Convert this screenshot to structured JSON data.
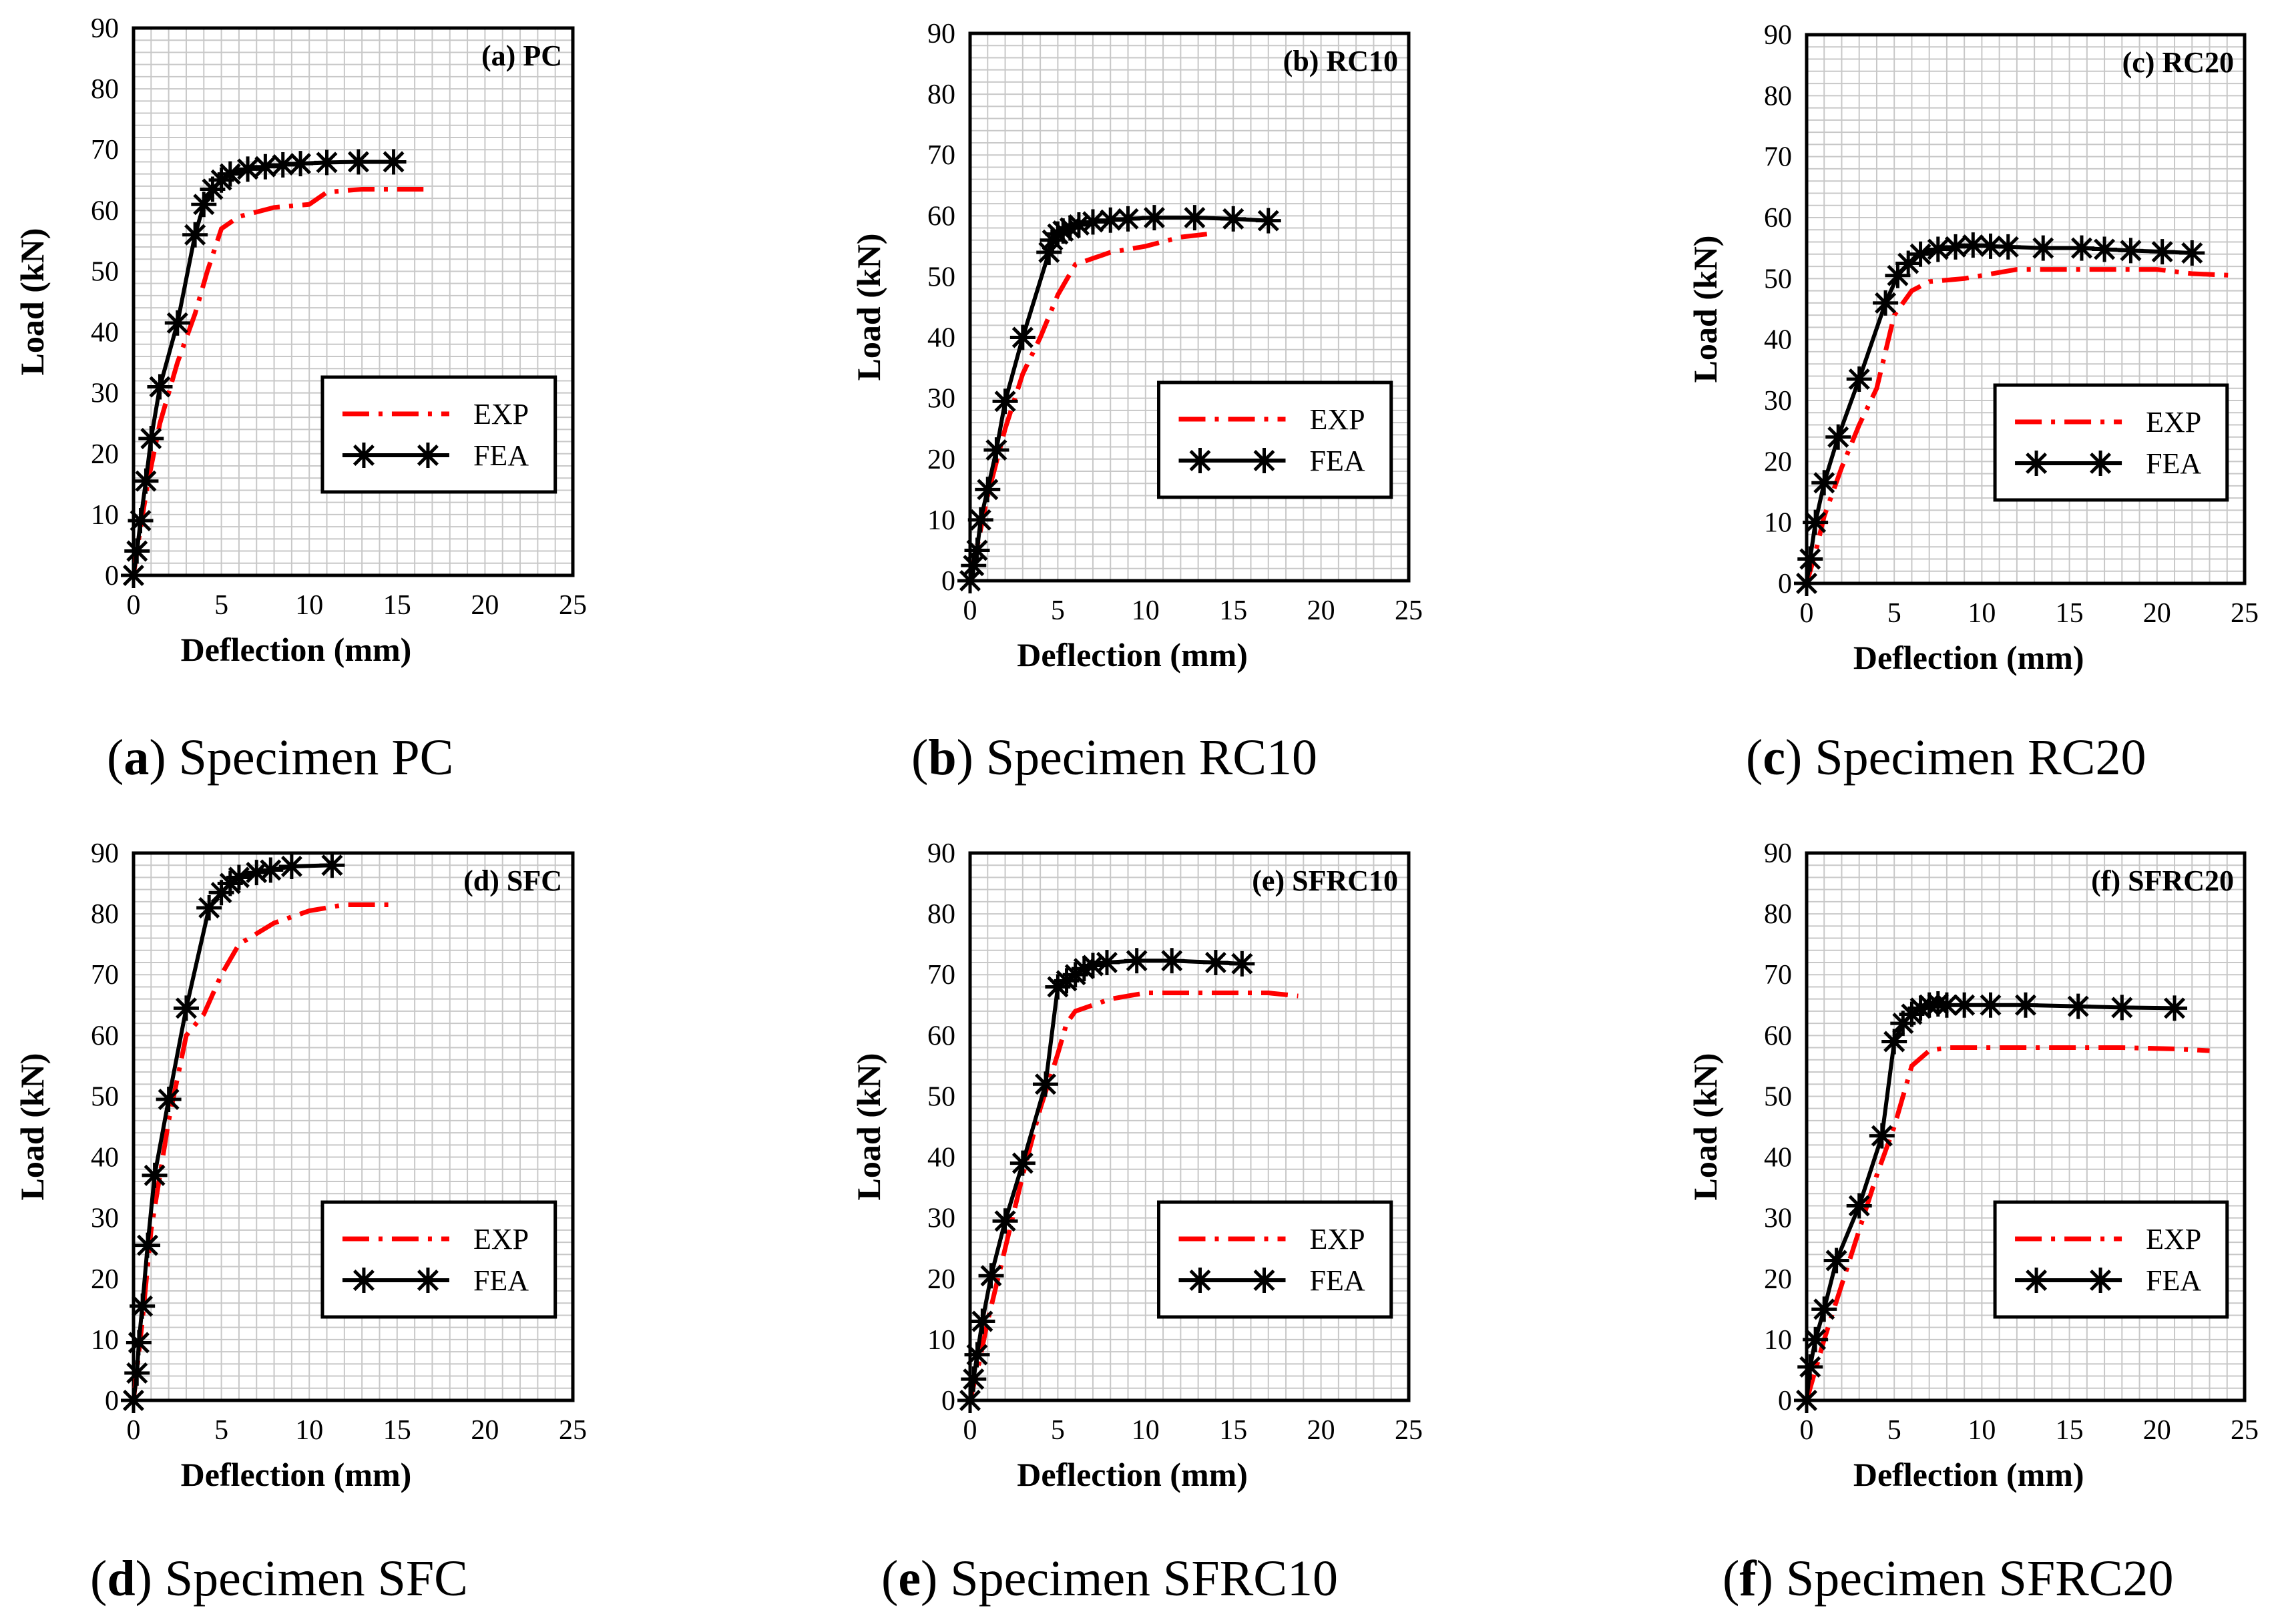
{
  "colors": {
    "exp": "#ff0000",
    "fea": "#000000",
    "grid": "#c8c8c8",
    "axis": "#000000",
    "background": "#ffffff"
  },
  "chart_data": [
    {
      "type": "line",
      "title": "(a) PC",
      "xlabel": "Deflection (mm)",
      "ylabel": "Load (kN)",
      "xlim": [
        0,
        25
      ],
      "ylim": [
        0,
        90
      ],
      "xticks": [
        "0",
        "5",
        "10",
        "15",
        "20",
        "25"
      ],
      "yticks": [
        "0",
        "10",
        "20",
        "30",
        "40",
        "50",
        "60",
        "70",
        "80",
        "90"
      ],
      "grid": true,
      "legend_position": "bottom-right",
      "caption_letter": "a",
      "caption_text": "Specimen PC",
      "series": [
        {
          "name": "EXP",
          "style": "dash-dot",
          "x": [
            0,
            0.3,
            0.8,
            1.5,
            2.5,
            3.5,
            4.2,
            5,
            6,
            8,
            10,
            11,
            13,
            15,
            16.5
          ],
          "y": [
            0,
            6,
            15,
            25,
            35,
            43,
            50,
            57,
            59,
            60.5,
            61,
            63,
            63.5,
            63.5,
            63.5
          ]
        },
        {
          "name": "FEA",
          "style": "solid-star",
          "x": [
            0,
            0.2,
            0.4,
            0.7,
            1,
            1.5,
            2.5,
            3.5,
            4,
            4.5,
            5,
            5.5,
            6.5,
            7.5,
            8.5,
            9.5,
            11,
            12.8,
            14.8
          ],
          "y": [
            0,
            4,
            9,
            15.5,
            22.5,
            31,
            41.5,
            56,
            61,
            63.5,
            65,
            66,
            66.8,
            67.2,
            67.5,
            67.7,
            67.9,
            68,
            68
          ]
        }
      ]
    },
    {
      "type": "line",
      "title": "(b) RC10",
      "xlabel": "Deflection (mm)",
      "ylabel": "Load (kN)",
      "xlim": [
        0,
        25
      ],
      "ylim": [
        0,
        90
      ],
      "xticks": [
        "0",
        "5",
        "10",
        "15",
        "20",
        "25"
      ],
      "yticks": [
        "0",
        "10",
        "20",
        "30",
        "40",
        "50",
        "60",
        "70",
        "80",
        "90"
      ],
      "grid": true,
      "legend_position": "bottom-right",
      "caption_letter": "b",
      "caption_text": "Specimen RC10",
      "series": [
        {
          "name": "EXP",
          "style": "dash-dot",
          "x": [
            0,
            0.5,
            1,
            2,
            3,
            4,
            5,
            6,
            7,
            8,
            10,
            12,
            13.5
          ],
          "y": [
            0,
            7,
            14,
            25,
            34,
            40,
            47,
            52,
            53,
            54,
            55,
            56.5,
            57
          ]
        },
        {
          "name": "FEA",
          "style": "solid-star",
          "x": [
            0,
            0.2,
            0.4,
            0.6,
            1,
            1.5,
            2,
            3,
            4.5,
            4.7,
            5,
            5.3,
            5.7,
            6.2,
            7,
            8,
            9,
            10.5,
            12.8,
            15,
            17
          ],
          "y": [
            0,
            2.5,
            5,
            10,
            15,
            21.5,
            29.5,
            40,
            54,
            56,
            57,
            57.5,
            58,
            58.5,
            59,
            59.3,
            59.5,
            59.7,
            59.7,
            59.5,
            59.2
          ]
        }
      ]
    },
    {
      "type": "line",
      "title": "(c) RC20",
      "xlabel": "Deflection (mm)",
      "ylabel": "Load (kN)",
      "xlim": [
        0,
        25
      ],
      "ylim": [
        0,
        90
      ],
      "xticks": [
        "0",
        "5",
        "10",
        "15",
        "20",
        "25"
      ],
      "yticks": [
        "0",
        "10",
        "20",
        "30",
        "40",
        "50",
        "60",
        "70",
        "80",
        "90"
      ],
      "grid": true,
      "legend_position": "bottom-right",
      "caption_letter": "c",
      "caption_text": "Specimen RC20",
      "series": [
        {
          "name": "EXP",
          "style": "dash-dot",
          "x": [
            0,
            0.5,
            1,
            2,
            3,
            4,
            5,
            6,
            7,
            9,
            10,
            12,
            15,
            18,
            20,
            22,
            24.5
          ],
          "y": [
            0,
            5,
            11,
            19,
            26,
            32,
            44,
            48,
            49.5,
            50,
            50.5,
            51.5,
            51.5,
            51.5,
            51.5,
            50.8,
            50.5
          ]
        },
        {
          "name": "FEA",
          "style": "solid-star",
          "x": [
            0,
            0.2,
            0.5,
            1,
            1.8,
            3,
            4.5,
            5.2,
            5.8,
            6.5,
            7.5,
            8.5,
            9.5,
            10.5,
            11.5,
            13.5,
            15.7,
            17,
            18.5,
            20.3,
            22
          ],
          "y": [
            0,
            4,
            10,
            16.5,
            24,
            33.5,
            46,
            50.5,
            52.5,
            54,
            54.8,
            55.2,
            55.5,
            55.3,
            55.2,
            55,
            55,
            54.8,
            54.6,
            54.4,
            54.2
          ]
        }
      ]
    },
    {
      "type": "line",
      "title": "(d) SFC",
      "xlabel": "Deflection (mm)",
      "ylabel": "Load (kN)",
      "xlim": [
        0,
        25
      ],
      "ylim": [
        0,
        90
      ],
      "xticks": [
        "0",
        "5",
        "10",
        "15",
        "20",
        "25"
      ],
      "yticks": [
        "0",
        "10",
        "20",
        "30",
        "40",
        "50",
        "60",
        "70",
        "80",
        "90"
      ],
      "grid": true,
      "legend_position": "bottom-right",
      "caption_letter": "d",
      "caption_text": "Specimen SFC",
      "series": [
        {
          "name": "EXP",
          "style": "dash-dot",
          "x": [
            0,
            0.5,
            1,
            2,
            3,
            4,
            5,
            6,
            8,
            10,
            12,
            14.8
          ],
          "y": [
            0,
            13,
            28,
            46,
            60,
            63.5,
            70,
            75,
            78.5,
            80.5,
            81.5,
            81.5
          ]
        },
        {
          "name": "FEA",
          "style": "solid-star",
          "x": [
            0,
            0.2,
            0.3,
            0.5,
            0.8,
            1.2,
            2,
            3,
            4.3,
            5,
            5.5,
            6,
            7,
            7.8,
            9,
            11.3
          ],
          "y": [
            0,
            4.5,
            9.5,
            15.5,
            25.5,
            37,
            49.5,
            64.5,
            81,
            83.5,
            85,
            86,
            86.8,
            87.2,
            87.8,
            88
          ]
        }
      ]
    },
    {
      "type": "line",
      "title": "(e) SFRC10",
      "xlabel": "Deflection (mm)",
      "ylabel": "Load (kN)",
      "xlim": [
        0,
        25
      ],
      "ylim": [
        0,
        90
      ],
      "xticks": [
        "0",
        "5",
        "10",
        "15",
        "20",
        "25"
      ],
      "yticks": [
        "0",
        "10",
        "20",
        "30",
        "40",
        "50",
        "60",
        "70",
        "80",
        "90"
      ],
      "grid": true,
      "legend_position": "bottom-right",
      "caption_letter": "e",
      "caption_text": "Specimen SFRC10",
      "series": [
        {
          "name": "EXP",
          "style": "dash-dot",
          "x": [
            0,
            0.5,
            1,
            2,
            3,
            4,
            5,
            5.5,
            6,
            7,
            8,
            9,
            10,
            12,
            15,
            17,
            18.7
          ],
          "y": [
            0,
            6,
            13,
            25,
            37,
            48,
            57,
            62,
            64,
            65,
            66,
            66.5,
            67,
            67,
            67,
            67,
            66.5
          ]
        },
        {
          "name": "FEA",
          "style": "solid-star",
          "x": [
            0,
            0.2,
            0.4,
            0.7,
            1.2,
            2,
            3,
            4.3,
            5,
            5.5,
            6,
            6.5,
            7,
            7.8,
            9.5,
            11.5,
            14,
            15.5
          ],
          "y": [
            0,
            3.5,
            7.5,
            13,
            20.5,
            29.5,
            39,
            52,
            68,
            69,
            70,
            71,
            71.5,
            72,
            72.3,
            72.3,
            72,
            71.8
          ]
        }
      ]
    },
    {
      "type": "line",
      "title": "(f) SFRC20",
      "xlabel": "Deflection (mm)",
      "ylabel": "Load (kN)",
      "xlim": [
        0,
        25
      ],
      "ylim": [
        0,
        90
      ],
      "xticks": [
        "0",
        "5",
        "10",
        "15",
        "20",
        "25"
      ],
      "yticks": [
        "0",
        "10",
        "20",
        "30",
        "40",
        "50",
        "60",
        "70",
        "80",
        "90"
      ],
      "grid": true,
      "legend_position": "bottom-right",
      "caption_letter": "f",
      "caption_text": "Specimen SFRC20",
      "series": [
        {
          "name": "EXP",
          "style": "dash-dot",
          "x": [
            0,
            0.5,
            1,
            2,
            3,
            4,
            5,
            6,
            7,
            8,
            10,
            12,
            15,
            18,
            21,
            23
          ],
          "y": [
            0,
            5,
            10,
            19,
            28,
            37,
            45,
            55,
            57.5,
            58,
            58,
            58,
            58,
            58,
            57.8,
            57.5
          ]
        },
        {
          "name": "FEA",
          "style": "solid-star",
          "x": [
            0,
            0.2,
            0.5,
            1,
            1.7,
            3,
            4.3,
            5,
            5.5,
            6,
            6.5,
            7,
            7.5,
            8,
            9,
            10.5,
            12.5,
            15.5,
            18,
            21
          ],
          "y": [
            0,
            5.5,
            10,
            15,
            23,
            32,
            43.5,
            59,
            62,
            63.5,
            64.5,
            65,
            65.2,
            65,
            65,
            65,
            65,
            64.8,
            64.6,
            64.5
          ]
        }
      ]
    }
  ]
}
